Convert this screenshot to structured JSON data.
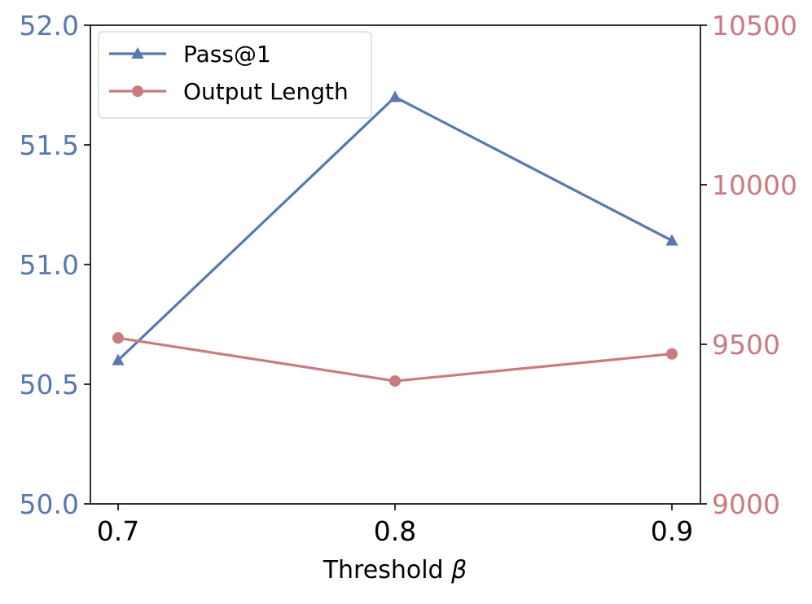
{
  "chart_data": {
    "type": "line",
    "title": "",
    "xlabel": "Threshold",
    "xlabel_symbol": "β",
    "x": [
      0.7,
      0.8,
      0.9
    ],
    "x_tick_labels": [
      "0.7",
      "0.8",
      "0.9"
    ],
    "y_left": {
      "ylim": [
        50.0,
        52.0
      ],
      "ticks": [
        50.0,
        50.5,
        51.0,
        51.5,
        52.0
      ],
      "tick_labels": [
        "50.0",
        "50.5",
        "51.0",
        "51.5",
        "52.0"
      ],
      "color": "#5a78ad"
    },
    "y_right": {
      "ylim": [
        9000,
        10500
      ],
      "ticks": [
        9000,
        9500,
        10000,
        10500
      ],
      "tick_labels": [
        "9000",
        "9500",
        "10000",
        "10500"
      ],
      "color": "#c97b80"
    },
    "series": [
      {
        "name": "Pass@1",
        "axis": "left",
        "marker": "triangle",
        "color": "#5a78ad",
        "values": [
          50.6,
          51.7,
          51.1
        ]
      },
      {
        "name": "Output Length",
        "axis": "right",
        "marker": "circle",
        "color": "#c97b80",
        "values": [
          9520,
          9385,
          9470
        ]
      }
    ],
    "legend": {
      "position": "top-left"
    },
    "grid": false
  }
}
